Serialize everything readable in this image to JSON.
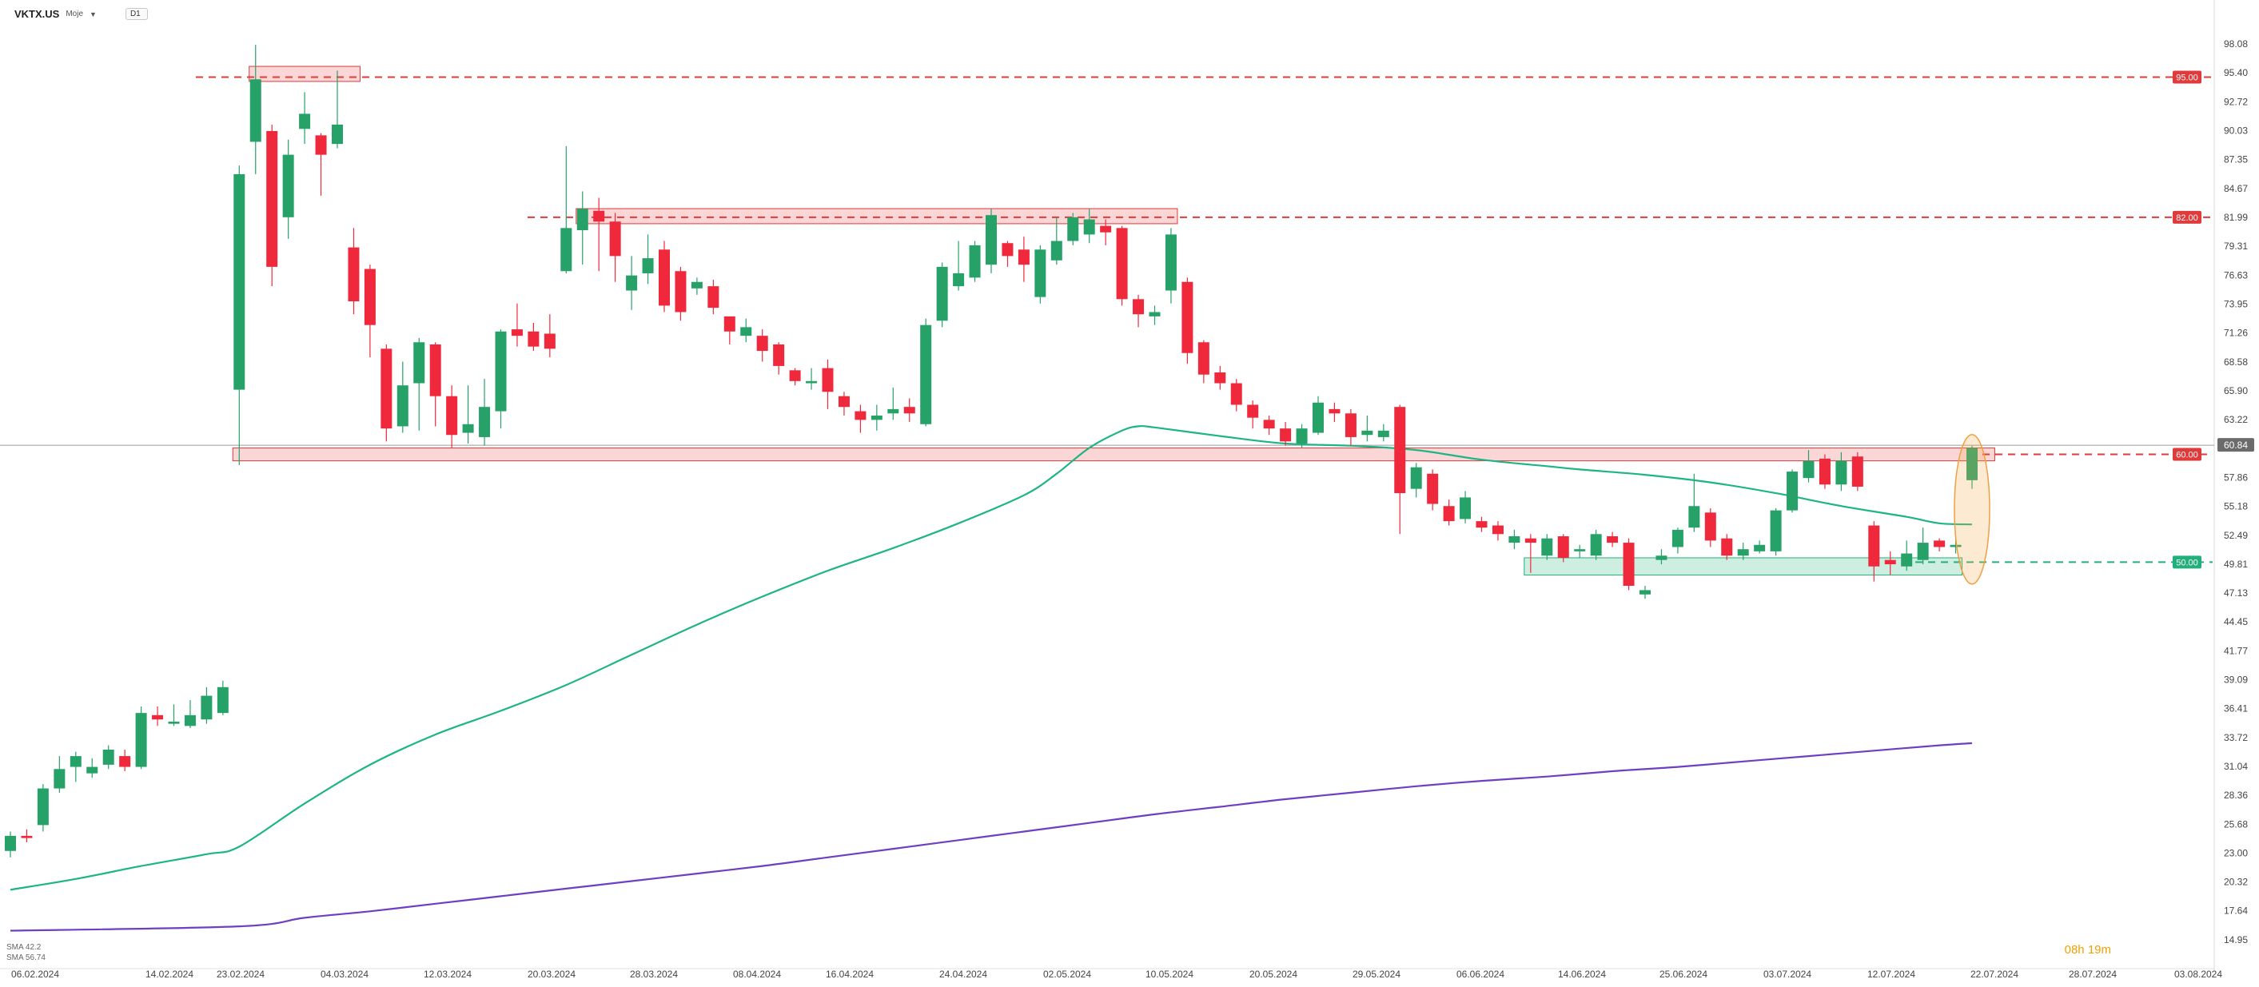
{
  "toolbar": {
    "symbol": "VKTX.US",
    "subtitle": "Moje",
    "timeframe": "D1"
  },
  "indicators": {
    "sma1_label": "SMA 42.2",
    "sma2_label": "SMA 56.74"
  },
  "timer": "08h 19m",
  "colors": {
    "up": "#26a269",
    "down": "#f0283c",
    "sma_fast": "#1db584",
    "sma_slow": "#6e3fc0",
    "resistance": "#e03a3a",
    "support": "#22b07a"
  },
  "chart_data": {
    "type": "candlestick",
    "ylim": [
      14.95,
      98.08
    ],
    "y_ticks": [
      "98.08",
      "95.40",
      "92.72",
      "90.03",
      "87.35",
      "84.67",
      "81.99",
      "79.31",
      "76.63",
      "73.95",
      "71.26",
      "68.58",
      "65.90",
      "63.22",
      "60.54",
      "57.86",
      "55.18",
      "52.49",
      "49.81",
      "47.13",
      "44.45",
      "41.77",
      "39.09",
      "36.41",
      "33.72",
      "31.04",
      "28.36",
      "25.68",
      "23.00",
      "20.32",
      "17.64",
      "14.95"
    ],
    "x_tick_labels": [
      "06.02.2024",
      "14.02.2024",
      "23.02.2024",
      "04.03.2024",
      "12.03.2024",
      "20.03.2024",
      "28.03.2024",
      "08.04.2024",
      "16.04.2024",
      "24.04.2024",
      "02.05.2024",
      "10.05.2024",
      "20.05.2024",
      "29.05.2024",
      "06.06.2024",
      "14.06.2024",
      "25.06.2024",
      "03.07.2024",
      "12.07.2024",
      "22.07.2024",
      "28.07.2024",
      "03.08.2024"
    ],
    "candles": [
      [
        23.2,
        24.6,
        25.0,
        22.6
      ],
      [
        24.6,
        24.4,
        25.2,
        24.0
      ],
      [
        25.6,
        29.0,
        29.4,
        25.0
      ],
      [
        29.0,
        30.8,
        32.0,
        28.6
      ],
      [
        31.0,
        32.0,
        32.4,
        29.6
      ],
      [
        30.4,
        31.0,
        31.8,
        30.0
      ],
      [
        31.2,
        32.6,
        33.0,
        30.8
      ],
      [
        32.0,
        31.0,
        32.6,
        30.6
      ],
      [
        31.0,
        36.0,
        36.6,
        30.8
      ],
      [
        35.8,
        35.4,
        36.6,
        34.8
      ],
      [
        35.0,
        35.2,
        36.8,
        34.8
      ],
      [
        34.8,
        35.8,
        37.2,
        34.6
      ],
      [
        35.4,
        37.6,
        38.4,
        35.0
      ],
      [
        36.0,
        38.4,
        39.0,
        35.8
      ],
      [
        66.0,
        86.0,
        86.8,
        59.0
      ],
      [
        89.0,
        94.8,
        98.0,
        86.0
      ],
      [
        90.0,
        77.4,
        90.6,
        75.6
      ],
      [
        82.0,
        87.8,
        89.2,
        80.0
      ],
      [
        90.2,
        91.6,
        93.6,
        88.8
      ],
      [
        89.6,
        87.8,
        89.8,
        84.0
      ],
      [
        88.8,
        90.6,
        95.6,
        88.4
      ],
      [
        79.2,
        74.2,
        81.0,
        73.0
      ],
      [
        77.2,
        72.0,
        77.6,
        69.0
      ],
      [
        69.8,
        62.4,
        70.2,
        61.2
      ],
      [
        62.6,
        66.4,
        68.6,
        62.0
      ],
      [
        66.6,
        70.4,
        70.8,
        62.2
      ],
      [
        70.2,
        65.4,
        70.4,
        62.6
      ],
      [
        65.4,
        61.8,
        66.4,
        60.6
      ],
      [
        62.0,
        62.8,
        66.4,
        61.0
      ],
      [
        61.6,
        64.4,
        67.0,
        60.8
      ],
      [
        64.0,
        71.4,
        71.6,
        62.4
      ],
      [
        71.6,
        71.0,
        74.0,
        70.0
      ],
      [
        71.4,
        70.0,
        72.2,
        69.6
      ],
      [
        71.2,
        69.8,
        73.0,
        69.0
      ],
      [
        77.0,
        81.0,
        88.6,
        76.8
      ],
      [
        80.8,
        82.8,
        84.4,
        77.6
      ],
      [
        82.6,
        81.6,
        83.8,
        77.0
      ],
      [
        81.6,
        78.4,
        82.4,
        76.0
      ],
      [
        75.2,
        76.6,
        78.4,
        73.4
      ],
      [
        76.8,
        78.2,
        80.4,
        75.8
      ],
      [
        79.0,
        73.8,
        79.8,
        73.2
      ],
      [
        77.0,
        73.2,
        77.4,
        72.4
      ],
      [
        75.4,
        76.0,
        76.4,
        74.8
      ],
      [
        75.6,
        73.6,
        76.2,
        73.0
      ],
      [
        72.8,
        71.4,
        72.8,
        70.2
      ],
      [
        71.0,
        71.8,
        72.6,
        70.4
      ],
      [
        71.0,
        69.6,
        71.6,
        68.6
      ],
      [
        70.2,
        68.2,
        70.4,
        67.4
      ],
      [
        67.8,
        66.8,
        68.0,
        66.4
      ],
      [
        66.6,
        66.8,
        68.0,
        66.0
      ],
      [
        68.0,
        65.8,
        68.8,
        64.2
      ],
      [
        65.4,
        64.4,
        65.8,
        63.6
      ],
      [
        64.0,
        63.2,
        64.6,
        62.0
      ],
      [
        63.2,
        63.6,
        64.6,
        62.2
      ],
      [
        63.8,
        64.2,
        66.2,
        63.2
      ],
      [
        64.4,
        63.8,
        65.2,
        63.0
      ],
      [
        62.8,
        72.0,
        72.6,
        62.6
      ],
      [
        72.4,
        77.4,
        77.8,
        71.8
      ],
      [
        75.6,
        76.8,
        79.8,
        75.2
      ],
      [
        76.4,
        79.4,
        79.8,
        76.0
      ],
      [
        77.6,
        82.2,
        82.8,
        76.8
      ],
      [
        79.6,
        78.4,
        79.8,
        77.4
      ],
      [
        79.0,
        77.6,
        80.2,
        76.0
      ],
      [
        74.6,
        79.0,
        79.4,
        74.0
      ],
      [
        78.0,
        79.8,
        82.0,
        77.6
      ],
      [
        79.8,
        82.0,
        82.4,
        79.4
      ],
      [
        80.4,
        81.8,
        82.8,
        79.6
      ],
      [
        81.2,
        80.6,
        81.8,
        79.4
      ],
      [
        81.0,
        74.4,
        81.2,
        73.8
      ],
      [
        74.4,
        73.0,
        74.8,
        71.8
      ],
      [
        72.8,
        73.2,
        73.8,
        72.0
      ],
      [
        75.2,
        80.4,
        81.0,
        74.0
      ],
      [
        76.0,
        69.4,
        76.4,
        68.4
      ],
      [
        70.4,
        67.4,
        70.6,
        66.6
      ],
      [
        67.6,
        66.6,
        68.2,
        66.0
      ],
      [
        66.6,
        64.6,
        67.0,
        64.0
      ],
      [
        64.6,
        63.4,
        65.0,
        62.4
      ],
      [
        63.2,
        62.4,
        63.6,
        61.8
      ],
      [
        62.4,
        61.2,
        63.0,
        60.8
      ],
      [
        61.0,
        62.4,
        62.8,
        60.6
      ],
      [
        62.0,
        64.8,
        65.4,
        61.8
      ],
      [
        64.2,
        63.8,
        64.8,
        63.0
      ],
      [
        63.8,
        61.6,
        64.2,
        60.8
      ],
      [
        61.8,
        62.2,
        63.6,
        61.2
      ],
      [
        61.6,
        62.2,
        62.8,
        61.2
      ],
      [
        64.4,
        56.4,
        64.6,
        52.6
      ],
      [
        56.8,
        58.8,
        59.2,
        56.0
      ],
      [
        58.2,
        55.4,
        58.6,
        54.8
      ],
      [
        55.2,
        53.8,
        55.8,
        53.4
      ],
      [
        54.0,
        56.0,
        56.6,
        53.6
      ],
      [
        53.8,
        53.2,
        54.2,
        52.8
      ],
      [
        53.4,
        52.6,
        53.8,
        52.0
      ],
      [
        51.8,
        52.4,
        53.0,
        51.2
      ],
      [
        52.2,
        51.8,
        52.6,
        49.0
      ],
      [
        50.6,
        52.2,
        52.6,
        50.2
      ],
      [
        52.4,
        50.4,
        52.6,
        50.0
      ],
      [
        51.0,
        51.2,
        51.6,
        50.4
      ],
      [
        50.6,
        52.6,
        53.0,
        50.2
      ],
      [
        52.4,
        51.8,
        52.8,
        51.4
      ],
      [
        51.8,
        47.8,
        52.2,
        47.4
      ],
      [
        47.0,
        47.4,
        47.8,
        46.6
      ],
      [
        50.2,
        50.6,
        51.2,
        49.8
      ],
      [
        51.4,
        53.0,
        53.2,
        50.8
      ],
      [
        53.2,
        55.2,
        58.2,
        52.8
      ],
      [
        54.6,
        52.0,
        55.0,
        51.4
      ],
      [
        52.2,
        50.6,
        52.6,
        50.2
      ],
      [
        50.6,
        51.2,
        51.8,
        50.2
      ],
      [
        51.0,
        51.6,
        52.0,
        50.8
      ],
      [
        51.0,
        54.8,
        55.0,
        50.6
      ],
      [
        54.8,
        58.4,
        58.6,
        54.6
      ],
      [
        57.8,
        59.4,
        60.4,
        57.4
      ],
      [
        59.6,
        57.2,
        60.0,
        56.8
      ],
      [
        57.2,
        59.4,
        60.2,
        56.6
      ],
      [
        59.8,
        57.0,
        60.2,
        56.6
      ],
      [
        53.4,
        49.6,
        53.8,
        48.2
      ],
      [
        50.2,
        49.8,
        51.0,
        48.8
      ],
      [
        49.6,
        50.8,
        52.0,
        49.2
      ],
      [
        50.2,
        51.8,
        53.2,
        49.8
      ],
      [
        52.0,
        51.4,
        52.2,
        51.0
      ],
      [
        51.4,
        51.6,
        52.4,
        50.8
      ],
      [
        57.6,
        60.6,
        60.8,
        56.8
      ]
    ],
    "sma_fast": [
      [
        0,
        19.6
      ],
      [
        4,
        20.6
      ],
      [
        8,
        21.8
      ],
      [
        12,
        22.9
      ],
      [
        14,
        23.6
      ],
      [
        18,
        27.6
      ],
      [
        22,
        31.2
      ],
      [
        26,
        34.0
      ],
      [
        30,
        36.2
      ],
      [
        34,
        38.6
      ],
      [
        38,
        41.4
      ],
      [
        42,
        44.2
      ],
      [
        46,
        46.8
      ],
      [
        50,
        49.2
      ],
      [
        54,
        51.3
      ],
      [
        58,
        53.6
      ],
      [
        62,
        56.2
      ],
      [
        64,
        58.2
      ],
      [
        66,
        60.6
      ],
      [
        68,
        62.2
      ],
      [
        69,
        62.6
      ],
      [
        70,
        62.5
      ],
      [
        74,
        61.7
      ],
      [
        78,
        61.0
      ],
      [
        82,
        60.8
      ],
      [
        86,
        60.4
      ],
      [
        90,
        59.5
      ],
      [
        94,
        58.9
      ],
      [
        96,
        58.6
      ],
      [
        100,
        58.1
      ],
      [
        104,
        57.4
      ],
      [
        108,
        56.4
      ],
      [
        112,
        55.2
      ],
      [
        116,
        54.2
      ],
      [
        118,
        53.6
      ],
      [
        120,
        53.5
      ]
    ],
    "sma_slow": [
      [
        0,
        15.8
      ],
      [
        14,
        16.2
      ],
      [
        18,
        17.0
      ],
      [
        22,
        17.6
      ],
      [
        26,
        18.3
      ],
      [
        30,
        19.0
      ],
      [
        34,
        19.7
      ],
      [
        38,
        20.4
      ],
      [
        42,
        21.1
      ],
      [
        46,
        21.8
      ],
      [
        50,
        22.6
      ],
      [
        54,
        23.4
      ],
      [
        58,
        24.2
      ],
      [
        62,
        25.0
      ],
      [
        66,
        25.8
      ],
      [
        70,
        26.6
      ],
      [
        74,
        27.3
      ],
      [
        78,
        28.0
      ],
      [
        82,
        28.6
      ],
      [
        86,
        29.2
      ],
      [
        90,
        29.7
      ],
      [
        94,
        30.1
      ],
      [
        98,
        30.6
      ],
      [
        102,
        31.0
      ],
      [
        106,
        31.5
      ],
      [
        110,
        32.0
      ],
      [
        114,
        32.5
      ],
      [
        118,
        33.0
      ],
      [
        120,
        33.2
      ]
    ],
    "levels": [
      {
        "value": 95.0,
        "label": "95.00",
        "kind": "resistance"
      },
      {
        "value": 82.0,
        "label": "82.00",
        "kind": "resistance"
      },
      {
        "value": 60.0,
        "label": "60.00",
        "kind": "resistance"
      },
      {
        "value": 50.0,
        "label": "50.00",
        "kind": "support"
      }
    ],
    "zones": [
      {
        "x0": 15,
        "x1": 21,
        "y0": 94.6,
        "y1": 96.0,
        "kind": "resistance"
      },
      {
        "x0": 35,
        "x1": 71,
        "y0": 81.4,
        "y1": 82.8,
        "kind": "resistance"
      },
      {
        "x0": 14,
        "x1": 121,
        "y0": 59.4,
        "y1": 60.6,
        "kind": "resistance"
      },
      {
        "x0": 93,
        "x1": 119,
        "y0": 48.8,
        "y1": 50.4,
        "kind": "support"
      }
    ],
    "current_price": {
      "value": 60.84,
      "label": "60.84"
    },
    "highlight_candle": 120
  }
}
